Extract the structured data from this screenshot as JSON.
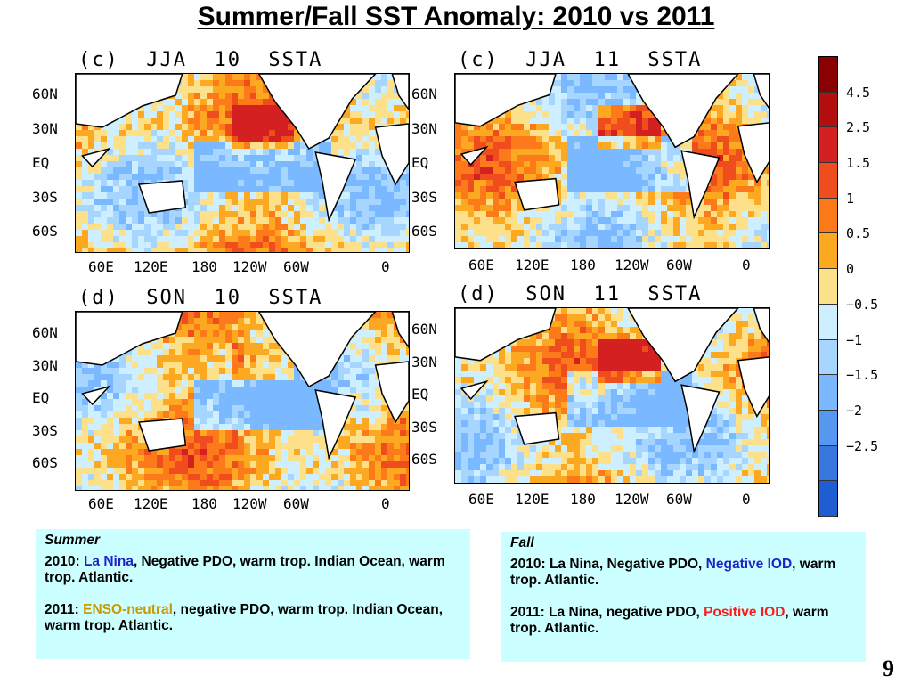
{
  "title": "Summer/Fall SST Anomaly: 2010 vs 2011",
  "panels": [
    {
      "label": "(c)  JJA  10  SSTA"
    },
    {
      "label": "(c)  JJA  11  SSTA"
    },
    {
      "label": "(d)  SON  10  SSTA"
    },
    {
      "label": "(d)  SON  11  SSTA"
    }
  ],
  "lat_ticks": [
    "60N",
    "30N",
    "EQ",
    "30S",
    "60S"
  ],
  "lon_ticks": [
    "60E",
    "120E",
    "180",
    "120W",
    "60W",
    "0"
  ],
  "colorbar": {
    "labels": [
      "4.5",
      "2.5",
      "1.5",
      "1",
      "0.5",
      "0",
      "-0.5",
      "-1",
      "-1.5",
      "-2",
      "-2.5"
    ],
    "colors": [
      "#8b0000",
      "#b40f0f",
      "#d42020",
      "#f04d1e",
      "#fc7a1a",
      "#fca820",
      "#fde08a",
      "#cdefff",
      "#a6d6ff",
      "#7ab8ff",
      "#5598f0",
      "#3678e0",
      "#1f5ed0"
    ]
  },
  "summer_box": {
    "header": "Summer",
    "line1_prefix": "2010: ",
    "line1_highlight": "La Nina",
    "line1_rest": ", Negative PDO, warm trop. Indian Ocean, warm trop. Atlantic.",
    "line2_prefix": "2011: ",
    "line2_highlight": "ENSO-neutral",
    "line2_rest": ", negative PDO, warm trop. Indian Ocean, warm trop. Atlantic."
  },
  "fall_box": {
    "header": "Fall",
    "line1_prefix": "2010: La Nina, Negative PDO, ",
    "line1_highlight": "Negative IOD",
    "line1_rest": ", warm trop. Atlantic.",
    "line2_prefix": "2011: La Nina, negative PDO, ",
    "line2_highlight": "Positive IOD",
    "line2_rest": ", warm trop. Atlantic."
  },
  "page_number": "9"
}
